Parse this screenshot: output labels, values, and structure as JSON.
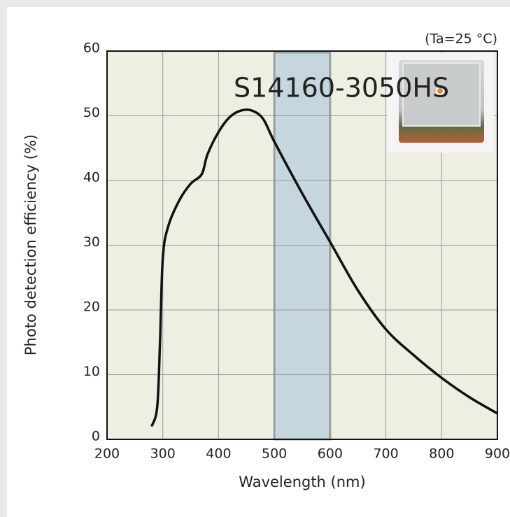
{
  "chart_data": {
    "type": "line",
    "annotations": [
      "S14160-3050HS",
      "(Ta=25 °C)"
    ],
    "x_label": "Wavelength (nm)",
    "y_label": "Photo detection efficiency (%)",
    "x": [
      280,
      290,
      295,
      300,
      310,
      330,
      350,
      370,
      380,
      400,
      420,
      440,
      460,
      480,
      500,
      550,
      600,
      650,
      700,
      750,
      800,
      850,
      900
    ],
    "values": [
      2,
      5,
      15,
      28,
      33,
      37,
      39.5,
      41,
      44,
      47.5,
      49.8,
      50.8,
      50.8,
      49.5,
      46,
      38,
      30.5,
      23,
      17,
      13,
      9.5,
      6.5,
      4
    ],
    "color": "#111111",
    "shaded_range": [
      500,
      600
    ],
    "xlim": [
      200,
      900
    ],
    "xticks": [
      200,
      300,
      400,
      500,
      600,
      700,
      800,
      900
    ],
    "ylim": [
      0,
      60
    ],
    "yticks": [
      0,
      10,
      20,
      30,
      40,
      50,
      60
    ],
    "grid": true
  }
}
